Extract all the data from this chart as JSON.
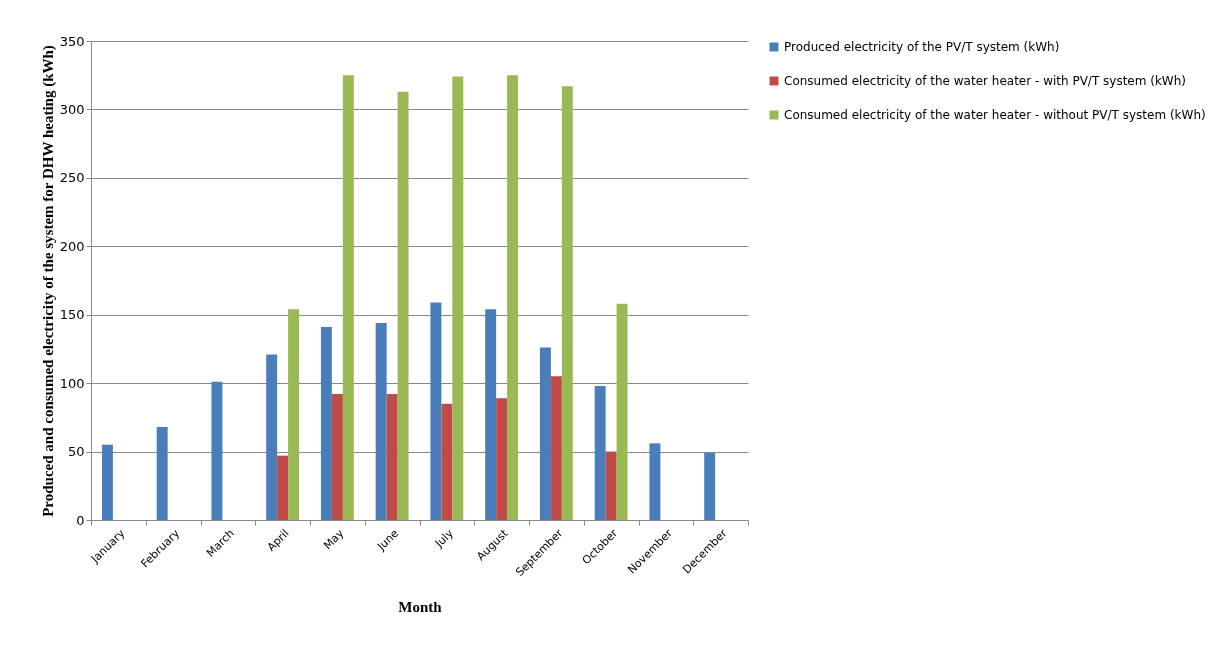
{
  "chart_data": {
    "type": "bar",
    "xlabel": "Month",
    "ylabel": "Produced and consumed electricity of the system for DHW heating (kWh)",
    "categories": [
      "January",
      "February",
      "March",
      "April",
      "May",
      "June",
      "July",
      "August",
      "September",
      "October",
      "November",
      "December"
    ],
    "series": [
      {
        "name": "Produced electricity of the PV/T system (kWh)",
        "color": "#4a7ebb",
        "values": [
          55,
          68,
          101,
          121,
          141,
          144,
          159,
          154,
          126,
          98,
          56,
          49
        ]
      },
      {
        "name": "Consumed electricity of the water heater - with PV/T system (kWh)",
        "color": "#be4b48",
        "values": [
          null,
          null,
          null,
          47,
          92,
          92,
          85,
          89,
          105,
          50,
          null,
          null
        ]
      },
      {
        "name": "Consumed electricity of the water heater - without PV/T system (kWh)",
        "color": "#98b954",
        "values": [
          null,
          null,
          null,
          154,
          325,
          313,
          324,
          325,
          317,
          158,
          null,
          null
        ]
      }
    ],
    "ylim": [
      0,
      350
    ],
    "yticks": [
      0,
      50,
      100,
      150,
      200,
      250,
      300,
      350
    ],
    "grid": "y",
    "legend": "right"
  }
}
